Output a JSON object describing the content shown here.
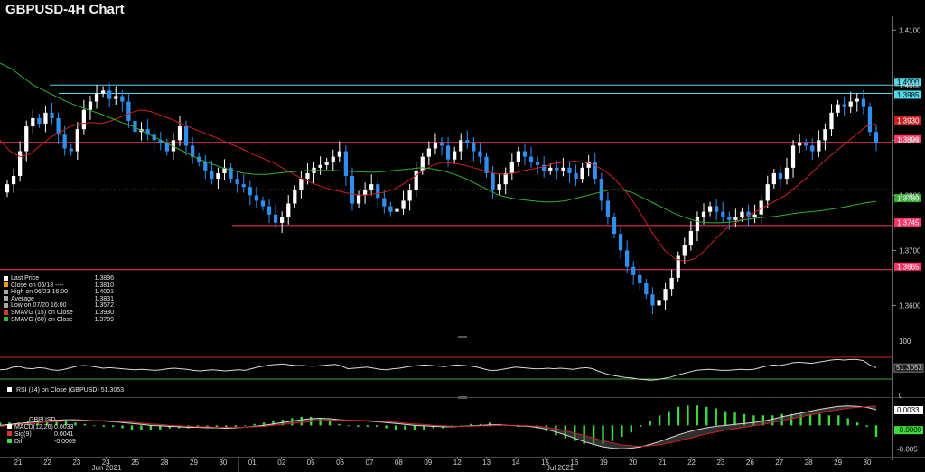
{
  "title": "GBPUSD-4H Chart",
  "colors": {
    "background": "#000000",
    "up_candle": "#ffffff",
    "down_candle": "#2f8ff0",
    "sma15": "#cc2020",
    "sma60": "#2fae2f",
    "support_line": "#ff3366",
    "top_line": "#4fd8e8",
    "avg_line": "#ff9900",
    "rsi_line": "#d8d8d8",
    "macd_line": "#d8d8d8",
    "sig_line": "#cc2020",
    "diff_bar": "#3ddc3d"
  },
  "legend": {
    "items": [
      {
        "label": "Last Price",
        "value": "1.3896",
        "color": "#ffffff"
      },
      {
        "label": "Close on 06/18 ----",
        "value": "1.3810",
        "color": "#ff9900"
      },
      {
        "label": "High on 06/23 16:00",
        "value": "1.4001",
        "color": "#aaaaaa"
      },
      {
        "label": "Average",
        "value": "1.3831",
        "color": "#aaaaaa"
      },
      {
        "label": "Low on 07/20 16:00",
        "value": "1.3572",
        "color": "#aaaaaa"
      },
      {
        "label": "SMAVG (15)  on Close",
        "value": "1.3930",
        "color": "#e03030"
      },
      {
        "label": "SMAVG (60)  on Close",
        "value": "1.3789",
        "color": "#2fbf2f"
      }
    ]
  },
  "rsi_legend": "RSI (14)  on Close (GBPUSD) 51.3053",
  "macd_legend": {
    "header": "GBPUSD",
    "items": [
      {
        "label": "MACD(12,26)",
        "value": "0.0033",
        "color": "#ffffff"
      },
      {
        "label": "Sig(9)",
        "value": "0.0041",
        "color": "#e03030"
      },
      {
        "label": "Diff",
        "value": "-0.0009",
        "color": "#3ddc3d"
      }
    ]
  },
  "chart_data": {
    "type": "candlestick",
    "title": "GBPUSD-4H Chart",
    "y_ticks": [
      "1.4100",
      "1.4000",
      "1.3900",
      "1.3800",
      "1.3700",
      "1.3600"
    ],
    "ylim": [
      1.3545,
      1.4125
    ],
    "price_levels": [
      {
        "label": "1.4000",
        "value": 1.4,
        "color": "#4fd8e8",
        "kind": "line"
      },
      {
        "label": "1.3985",
        "value": 1.3985,
        "color": "#4fd8e8",
        "kind": "line"
      },
      {
        "label": "1.3930",
        "value": 1.393,
        "color": "#cc2020",
        "kind": "tag"
      },
      {
        "label": "1.3896",
        "value": 1.3896,
        "color": "#ff3366",
        "kind": "line"
      },
      {
        "label": "1.3789",
        "value": 1.3789,
        "color": "#2fae2f",
        "kind": "tag"
      },
      {
        "label": "1.3745",
        "value": 1.3745,
        "color": "#ff3366",
        "kind": "line"
      },
      {
        "label": "1.3665",
        "value": 1.3665,
        "color": "#ff3366",
        "kind": "line"
      }
    ],
    "close_line": 1.381,
    "x_ticks": [
      "21",
      "22",
      "23",
      "24",
      "25",
      "28",
      "29",
      "30",
      "01",
      "02",
      "05",
      "06",
      "07",
      "08",
      "09",
      "12",
      "13",
      "14",
      "15",
      "16",
      "19",
      "20",
      "21",
      "22",
      "23",
      "26",
      "27",
      "28",
      "29",
      "30"
    ],
    "month_labels": [
      "Jun 2021",
      "Jul 2021"
    ],
    "close": [
      1.382,
      1.3835,
      1.388,
      1.3925,
      1.394,
      1.393,
      1.395,
      1.394,
      1.391,
      1.3885,
      1.388,
      1.392,
      1.3955,
      1.397,
      1.3985,
      1.399,
      1.3975,
      1.398,
      1.397,
      1.3935,
      1.3915,
      1.392,
      1.391,
      1.39,
      1.3895,
      1.388,
      1.39,
      1.3925,
      1.389,
      1.387,
      1.386,
      1.3845,
      1.383,
      1.384,
      1.385,
      1.383,
      1.382,
      1.3815,
      1.38,
      1.379,
      1.378,
      1.3765,
      1.375,
      1.376,
      1.3785,
      1.381,
      1.383,
      1.384,
      1.385,
      1.3855,
      1.386,
      1.387,
      1.388,
      1.3835,
      1.3785,
      1.38,
      1.381,
      1.382,
      1.3795,
      1.378,
      1.377,
      1.3775,
      1.379,
      1.381,
      1.3845,
      1.387,
      1.3885,
      1.3895,
      1.389,
      1.3865,
      1.388,
      1.39,
      1.3895,
      1.388,
      1.387,
      1.384,
      1.381,
      1.382,
      1.384,
      1.386,
      1.388,
      1.387,
      1.386,
      1.3855,
      1.3845,
      1.385,
      1.3845,
      1.385,
      1.384,
      1.383,
      1.385,
      1.386,
      1.383,
      1.379,
      1.376,
      1.373,
      1.37,
      1.367,
      1.3655,
      1.364,
      1.362,
      1.36,
      1.361,
      1.363,
      1.365,
      1.369,
      1.371,
      1.3735,
      1.376,
      1.377,
      1.378,
      1.377,
      1.376,
      1.3755,
      1.376,
      1.377,
      1.376,
      1.3765,
      1.379,
      1.382,
      1.384,
      1.383,
      1.385,
      1.389,
      1.3895,
      1.389,
      1.388,
      1.39,
      1.392,
      1.395,
      1.3965,
      1.396,
      1.397,
      1.3975,
      1.396,
      1.3915,
      1.3896
    ],
    "sma15": [
      1.39,
      1.388,
      1.387,
      1.3875,
      1.389,
      1.3905,
      1.3915,
      1.3925,
      1.393,
      1.3932,
      1.393,
      1.3935,
      1.3942,
      1.395,
      1.3955,
      1.3952,
      1.3945,
      1.3938,
      1.393,
      1.3922,
      1.3915,
      1.3908,
      1.39,
      1.3892,
      1.3885,
      1.3875,
      1.3868,
      1.386,
      1.385,
      1.384,
      1.383,
      1.3822,
      1.3815,
      1.381,
      1.3806,
      1.3802,
      1.38,
      1.3802,
      1.3805,
      1.381,
      1.382,
      1.3832,
      1.3845,
      1.3855,
      1.386,
      1.3858,
      1.3855,
      1.385,
      1.3845,
      1.384,
      1.3838,
      1.384,
      1.3845,
      1.3848,
      1.3852,
      1.3858,
      1.386,
      1.3862,
      1.386,
      1.3855,
      1.3845,
      1.383,
      1.381,
      1.3785,
      1.3755,
      1.3725,
      1.37,
      1.3685,
      1.368,
      1.3685,
      1.37,
      1.372,
      1.3738,
      1.375,
      1.376,
      1.377,
      1.378,
      1.379,
      1.38,
      1.3815,
      1.383,
      1.3848,
      1.3865,
      1.388,
      1.3895,
      1.391,
      1.3925,
      1.393
    ],
    "sma60": [
      1.404,
      1.403,
      1.4015,
      1.4,
      1.399,
      1.398,
      1.397,
      1.3962,
      1.3955,
      1.3948,
      1.394,
      1.3932,
      1.3925,
      1.3915,
      1.3905,
      1.3895,
      1.3885,
      1.3875,
      1.3865,
      1.3858,
      1.385,
      1.3845,
      1.384,
      1.3838,
      1.3838,
      1.384,
      1.3842,
      1.3844,
      1.3845,
      1.3845,
      1.3845,
      1.3844,
      1.3843,
      1.3842,
      1.3842,
      1.3844,
      1.3846,
      1.3848,
      1.385,
      1.3848,
      1.3844,
      1.3838,
      1.383,
      1.382,
      1.381,
      1.38,
      1.3795,
      1.3792,
      1.379,
      1.3788,
      1.3788,
      1.379,
      1.3795,
      1.38,
      1.3805,
      1.381,
      1.381,
      1.3805,
      1.3795,
      1.3785,
      1.3775,
      1.3765,
      1.3758,
      1.3752,
      1.375,
      1.375,
      1.3752,
      1.3755,
      1.3758,
      1.376,
      1.3762,
      1.3765,
      1.3768,
      1.377,
      1.3772,
      1.3775,
      1.3778,
      1.3782,
      1.3786,
      1.3789
    ],
    "rsi": {
      "ylim": [
        0,
        100
      ],
      "y_ticks": [
        "100",
        "50",
        "0"
      ],
      "last": 51.3053,
      "values": [
        47,
        48,
        52,
        53,
        50,
        49,
        51,
        50,
        47,
        46,
        48,
        51,
        54,
        55,
        54,
        52,
        50,
        51,
        50,
        49,
        48,
        47,
        48,
        47,
        46,
        47,
        49,
        50,
        49,
        48,
        46,
        45,
        46,
        47,
        46,
        45,
        46,
        47,
        46,
        49,
        52,
        54,
        56,
        57,
        58,
        56,
        55,
        55,
        54,
        54,
        55,
        56,
        57,
        54,
        49,
        50,
        51,
        52,
        50,
        48,
        47,
        49,
        50,
        52,
        54,
        55,
        56,
        55,
        54,
        53,
        55,
        56,
        55,
        54,
        52,
        49,
        46,
        46,
        48,
        50,
        52,
        51,
        50,
        49,
        49,
        50,
        49,
        50,
        49,
        48,
        50,
        51,
        49,
        44,
        40,
        37,
        35,
        33,
        32,
        30,
        29,
        28,
        29,
        31,
        33,
        37,
        40,
        43,
        46,
        47,
        48,
        47,
        46,
        46,
        47,
        48,
        47,
        48,
        51,
        54,
        56,
        55,
        57,
        60,
        61,
        60,
        59,
        61,
        63,
        65,
        66,
        65,
        66,
        66,
        64,
        56,
        51
      ]
    },
    "macd": {
      "y_ticks": [
        "0.0033",
        "-0.0009",
        "-0.005"
      ],
      "macd": [
        0.0,
        0.0002,
        0.0004,
        0.0006,
        0.0008,
        0.001,
        0.0011,
        0.0012,
        0.0012,
        0.0011,
        0.001,
        0.0009,
        0.0008,
        0.0006,
        0.0004,
        0.0002,
        0.0,
        -0.0001,
        -0.0002,
        -0.0003,
        -0.0004,
        -0.0004,
        -0.0005,
        -0.0005,
        -0.0006,
        -0.0005,
        -0.0004,
        -0.0002,
        0.0,
        0.0003,
        0.0006,
        0.0009,
        0.0012,
        0.0014,
        0.0015,
        0.0014,
        0.0012,
        0.0011,
        0.001,
        0.0009,
        0.0008,
        0.0006,
        0.0004,
        0.0002,
        0.0,
        -0.0001,
        -0.0002,
        -0.0003,
        -0.0003,
        -0.0002,
        -0.0001,
        0.0,
        0.0001,
        0.0001,
        0.0,
        -0.0001,
        -0.0002,
        -0.0004,
        -0.0008,
        -0.0014,
        -0.002,
        -0.0027,
        -0.0034,
        -0.004,
        -0.0045,
        -0.0048,
        -0.0049,
        -0.0048,
        -0.0045,
        -0.004,
        -0.0034,
        -0.0027,
        -0.002,
        -0.0014,
        -0.0009,
        -0.0005,
        -0.0002,
        0.0,
        0.0002,
        0.0004,
        0.0006,
        0.0009,
        0.0013,
        0.0018,
        0.0022,
        0.0026,
        0.003,
        0.0034,
        0.0037,
        0.004,
        0.0041,
        0.004,
        0.0038,
        0.0033
      ],
      "signal": [
        -0.0002,
        0.0,
        0.0002,
        0.0003,
        0.0005,
        0.0007,
        0.0008,
        0.0009,
        0.001,
        0.001,
        0.001,
        0.001,
        0.0009,
        0.0008,
        0.0007,
        0.0005,
        0.0003,
        0.0002,
        0.0,
        -0.0001,
        -0.0002,
        -0.0003,
        -0.0003,
        -0.0004,
        -0.0004,
        -0.0004,
        -0.0004,
        -0.0003,
        -0.0002,
        0.0,
        0.0002,
        0.0004,
        0.0006,
        0.0008,
        0.001,
        0.0011,
        0.0011,
        0.0011,
        0.0011,
        0.001,
        0.0009,
        0.0008,
        0.0007,
        0.0005,
        0.0003,
        0.0002,
        0.0,
        -0.0001,
        -0.0002,
        -0.0002,
        -0.0002,
        -0.0001,
        -0.0001,
        0.0,
        0.0,
        0.0,
        -0.0001,
        -0.0002,
        -0.0004,
        -0.0007,
        -0.0011,
        -0.0016,
        -0.0021,
        -0.0027,
        -0.0032,
        -0.0037,
        -0.0041,
        -0.0043,
        -0.0044,
        -0.0043,
        -0.0041,
        -0.0037,
        -0.0033,
        -0.0028,
        -0.0023,
        -0.0018,
        -0.0014,
        -0.001,
        -0.0007,
        -0.0004,
        -0.0001,
        0.0002,
        0.0006,
        0.001,
        0.0014,
        0.0018,
        0.0022,
        0.0026,
        0.003,
        0.0033,
        0.0036,
        0.0038,
        0.0039,
        0.0041
      ],
      "ylim": [
        -0.0062,
        0.0052
      ]
    }
  }
}
